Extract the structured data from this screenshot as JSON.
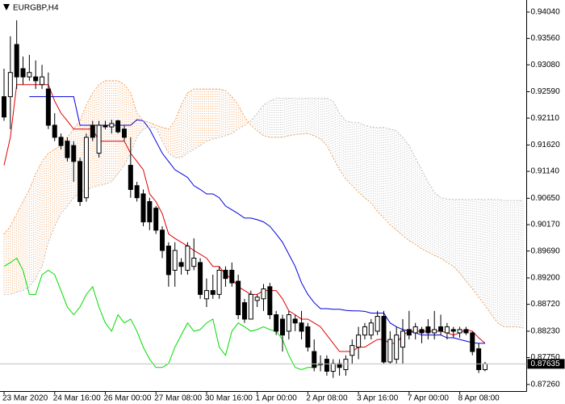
{
  "chart_data": {
    "type": "candlestick",
    "title": "EURGBP,H4",
    "categories": [
      "23 Mar 2020",
      null,
      null,
      null,
      null,
      null,
      null,
      null,
      "24 Mar 16:00",
      null,
      null,
      null,
      null,
      null,
      null,
      null,
      "26 Mar 00:00",
      null,
      null,
      null,
      null,
      null,
      null,
      null,
      "27 Mar 08:00",
      null,
      null,
      null,
      null,
      null,
      null,
      null,
      "30 Mar 16:00",
      null,
      null,
      null,
      null,
      null,
      null,
      null,
      "1 Apr 00:00",
      null,
      null,
      null,
      null,
      null,
      null,
      null,
      "2 Apr 08:00",
      null,
      null,
      null,
      null,
      null,
      null,
      null,
      "3 Apr 16:00",
      null,
      null,
      null,
      null,
      null,
      null,
      null,
      "7 Apr 00:00",
      null,
      null,
      null,
      null,
      null,
      null,
      null,
      "8 Apr 08:00",
      null,
      null,
      null,
      null,
      null,
      null,
      null,
      null,
      null,
      null
    ],
    "open": [
      0.925,
      0.925,
      0.9345,
      0.9301,
      0.9286,
      0.9286,
      0.9272,
      0.9264,
      0.9198,
      0.9176,
      0.9169,
      0.9161,
      0.9132,
      0.9066,
      0.9198,
      0.9147,
      0.9198,
      0.9195,
      0.9206,
      0.9191,
      0.9125,
      0.9088,
      0.9073,
      0.9059,
      0.9047,
      0.9007,
      0.8978,
      0.8934,
      0.8948,
      0.8934,
      0.8941,
      0.8948,
      0.8882,
      0.8897,
      0.889,
      0.8934,
      0.8934,
      0.8914,
      0.8875,
      0.8845,
      0.8879,
      0.8882,
      0.8904,
      0.8853,
      0.8845,
      0.8823,
      0.8845,
      0.8838,
      0.8831,
      0.8786,
      0.8764,
      0.8772,
      0.875,
      0.8764,
      0.8753,
      0.8779,
      0.8794,
      0.8816,
      0.8816,
      0.8823,
      0.885,
      0.8767,
      0.8772,
      0.8794,
      0.8826,
      0.882,
      0.8826,
      0.8831,
      0.882,
      0.8831,
      0.882,
      0.8826,
      0.882,
      0.8826,
      0.882,
      0.8791,
      0.8753,
      null,
      null,
      null,
      null,
      null,
      null
    ],
    "high": [
      0.9301,
      0.936,
      0.9389,
      0.9323,
      0.9326,
      0.9316,
      0.9308,
      0.9294,
      0.922,
      0.9183,
      0.9176,
      0.9169,
      0.9139,
      0.9183,
      0.9206,
      0.9206,
      0.9206,
      0.9208,
      0.9208,
      0.9198,
      0.9176,
      0.9095,
      0.9081,
      0.9066,
      0.9051,
      0.9014,
      0.8985,
      0.8985,
      0.8956,
      0.8985,
      0.8992,
      0.8956,
      0.8919,
      0.8926,
      0.8941,
      0.8941,
      0.8948,
      0.8926,
      0.8882,
      0.8897,
      0.889,
      0.8909,
      0.8911,
      0.886,
      0.8853,
      0.886,
      0.8853,
      0.886,
      0.8838,
      0.8808,
      0.8779,
      0.8779,
      0.8772,
      0.8772,
      0.8779,
      0.8808,
      0.8831,
      0.8838,
      0.8845,
      0.886,
      0.886,
      0.8823,
      0.8831,
      0.8845,
      0.886,
      0.8838,
      0.8831,
      0.8845,
      0.886,
      0.8853,
      0.8838,
      0.8831,
      0.8831,
      0.8831,
      0.8823,
      0.8801,
      0.8767,
      null,
      null,
      null,
      null,
      null,
      null
    ],
    "low": [
      0.9206,
      0.9191,
      0.9264,
      0.9272,
      0.9279,
      0.9264,
      0.9264,
      0.9191,
      0.9169,
      0.9154,
      0.9132,
      0.9095,
      0.9051,
      0.9059,
      0.9169,
      0.9139,
      0.9191,
      0.9183,
      0.9183,
      0.9169,
      0.9066,
      0.9059,
      0.9014,
      0.9007,
      0.9,
      0.8956,
      0.8904,
      0.8904,
      0.8926,
      0.8926,
      0.8934,
      0.8882,
      0.8867,
      0.8882,
      0.8882,
      0.8904,
      0.8904,
      0.8845,
      0.8838,
      0.8845,
      0.8867,
      0.886,
      0.8845,
      0.8816,
      0.8786,
      0.8808,
      0.8823,
      0.8808,
      0.8786,
      0.875,
      0.875,
      0.8742,
      0.8738,
      0.8742,
      0.8742,
      0.8764,
      0.8772,
      0.8808,
      0.8808,
      0.8816,
      0.8764,
      0.8764,
      0.8764,
      0.8764,
      0.8808,
      0.8808,
      0.8801,
      0.8808,
      0.8808,
      0.8816,
      0.8808,
      0.8811,
      0.8811,
      0.8816,
      0.8779,
      0.8747,
      0.875,
      null,
      null,
      null,
      null,
      null,
      null
    ],
    "close": [
      0.9213,
      0.9294,
      0.9286,
      0.9286,
      0.9294,
      0.9279,
      0.9286,
      0.9198,
      0.9176,
      0.9161,
      0.9139,
      0.9132,
      0.9059,
      0.9176,
      0.9176,
      0.9198,
      0.9195,
      0.9201,
      0.9186,
      0.9176,
      0.9081,
      0.9066,
      0.9022,
      0.9022,
      0.9007,
      0.897,
      0.8926,
      0.897,
      0.8941,
      0.8978,
      0.8956,
      0.889,
      0.8897,
      0.889,
      0.8934,
      0.8919,
      0.8911,
      0.8853,
      0.8845,
      0.889,
      0.8885,
      0.89,
      0.8853,
      0.8823,
      0.8816,
      0.8853,
      0.8838,
      0.8823,
      0.8794,
      0.8757,
      0.8762,
      0.875,
      0.8764,
      0.8757,
      0.8772,
      0.8797,
      0.8816,
      0.8831,
      0.8838,
      0.885,
      0.8767,
      0.8808,
      0.8816,
      0.8823,
      0.8816,
      0.8831,
      0.882,
      0.882,
      0.8826,
      0.8823,
      0.8831,
      0.8823,
      0.8826,
      0.882,
      0.8786,
      0.8753,
      0.87635,
      null,
      null,
      null,
      null,
      null,
      null
    ],
    "up_color": "#ffffff",
    "down_color": "#000000",
    "wick_color": "#000000",
    "series": [
      {
        "color": "#e00000",
        "style": "solid",
        "values": [
          0.9125,
          0.9176,
          0.9272,
          0.9272,
          0.9272,
          0.9272,
          0.9272,
          0.9272,
          0.9242,
          0.922,
          0.9206,
          0.9191,
          0.9191,
          0.9191,
          0.9191,
          0.9169,
          0.9169,
          0.9169,
          0.9169,
          0.9169,
          0.9147,
          0.9132,
          0.9117,
          0.9073,
          0.9059,
          0.9037,
          0.9,
          0.8992,
          0.8985,
          0.8978,
          0.897,
          0.8963,
          0.8956,
          0.8941,
          0.8941,
          0.8926,
          0.8919,
          0.8904,
          0.8897,
          0.889,
          0.889,
          0.8897,
          0.8897,
          0.8897,
          0.8882,
          0.886,
          0.8853,
          0.8845,
          0.8845,
          0.8838,
          0.8831,
          0.8816,
          0.8801,
          0.8786,
          0.8786,
          0.8786,
          0.8794,
          0.8794,
          0.8801,
          0.8808,
          0.8808,
          0.8801,
          0.8801,
          0.8816,
          0.8823,
          0.8823,
          0.8823,
          0.8823,
          0.8823,
          0.8823,
          0.882,
          0.8816,
          0.882,
          0.8826,
          0.8823,
          0.8811,
          0.8801,
          null,
          null,
          null,
          null,
          null,
          null
        ]
      },
      {
        "color": "#0000dd",
        "style": "solid",
        "values": [
          null,
          null,
          null,
          null,
          0.925,
          0.925,
          0.925,
          0.925,
          0.925,
          0.925,
          0.925,
          0.925,
          0.9198,
          0.9198,
          0.9198,
          0.9198,
          0.9198,
          0.9198,
          0.9198,
          0.9198,
          0.9198,
          0.9208,
          0.9206,
          0.9191,
          0.9169,
          0.9147,
          0.9132,
          0.9117,
          0.911,
          0.9103,
          0.9088,
          0.9081,
          0.9073,
          0.9073,
          0.9066,
          0.9051,
          0.9044,
          0.9037,
          0.9029,
          0.9029,
          0.9026,
          0.9022,
          0.9014,
          0.9,
          0.8985,
          0.8963,
          0.8941,
          0.8911,
          0.889,
          0.8875,
          0.8864,
          0.8864,
          0.8863,
          0.8863,
          0.8861,
          0.886,
          0.886,
          0.8859,
          0.8856,
          0.8856,
          0.8856,
          0.8838,
          0.8831,
          0.8826,
          0.8823,
          0.882,
          0.8816,
          0.8816,
          0.8816,
          0.8816,
          0.8811,
          0.8811,
          0.8808,
          0.8805,
          0.8802,
          0.8801,
          0.8801,
          null,
          null,
          null,
          null,
          null,
          null
        ]
      },
      {
        "color": "#00dd00",
        "style": "solid",
        "values": [
          0.8941,
          0.8948,
          0.8956,
          0.8934,
          0.889,
          0.889,
          0.8926,
          0.8934,
          0.8926,
          0.8897,
          0.8867,
          0.8853,
          0.8867,
          0.889,
          0.8904,
          0.8867,
          0.8838,
          0.8823,
          0.8853,
          0.8838,
          0.8845,
          0.8823,
          0.8794,
          0.8772,
          0.8757,
          0.8757,
          0.8764,
          0.8794,
          0.8816,
          0.8838,
          0.8823,
          0.8826,
          0.8838,
          0.8845,
          0.8794,
          0.8779,
          0.8823,
          0.8838,
          0.8831,
          0.8823,
          0.8826,
          0.8831,
          0.8826,
          0.8823,
          0.8808,
          0.8779,
          0.8757,
          0.8753,
          0.8757,
          0.8757,
          0.87635,
          null,
          null,
          null,
          null,
          null,
          null,
          null,
          null,
          null,
          null,
          null,
          null,
          null,
          null,
          null,
          null,
          null,
          null,
          null,
          null,
          null,
          null,
          null,
          null,
          null,
          null,
          null,
          null,
          null,
          null,
          null,
          null
        ]
      },
      {
        "color": "#f4a460",
        "style": "dot",
        "values": [
          0.9,
          0.9014,
          0.9037,
          0.9059,
          0.9081,
          0.911,
          0.9132,
          0.9147,
          0.9154,
          0.9161,
          0.9176,
          0.9191,
          0.9206,
          0.9235,
          0.9257,
          0.9272,
          0.9279,
          0.9279,
          0.9279,
          0.9272,
          0.9257,
          0.922,
          0.9206,
          0.9203,
          0.9198,
          0.9194,
          0.9191,
          0.9206,
          0.9235,
          0.9257,
          0.9264,
          0.9264,
          0.9264,
          0.9264,
          0.9264,
          0.9261,
          0.925,
          0.9235,
          0.9213,
          0.9198,
          0.9188,
          0.9179,
          0.9176,
          0.9176,
          0.9176,
          0.9179,
          0.9181,
          0.9182,
          0.9183,
          0.9179,
          0.9173,
          0.9161,
          0.9139,
          0.9117,
          0.91,
          0.9088,
          0.9076,
          0.9066,
          0.9056,
          0.9041,
          0.9029,
          0.9017,
          0.9007,
          0.8997,
          0.8988,
          0.8981,
          0.8973,
          0.8967,
          0.8961,
          0.8956,
          0.8948,
          0.8941,
          0.8929,
          0.8914,
          0.89,
          0.8885,
          0.887,
          0.8853,
          0.8838,
          0.8831,
          0.8831,
          0.8831,
          0.8829
        ]
      },
      {
        "color": "#c0c0c0",
        "style": "dot",
        "values": [
          0.889,
          0.889,
          0.8894,
          0.8897,
          0.8904,
          0.8919,
          0.8941,
          0.8985,
          0.9014,
          0.9037,
          0.9051,
          0.9066,
          0.9076,
          0.9081,
          0.9085,
          0.9088,
          0.9091,
          0.9095,
          0.911,
          0.9125,
          0.9147,
          0.9176,
          0.9191,
          0.9194,
          0.9194,
          0.9169,
          0.9147,
          0.9139,
          0.9139,
          0.9147,
          0.9154,
          0.9161,
          0.9169,
          0.9173,
          0.9176,
          0.9179,
          0.9183,
          0.9191,
          0.9198,
          0.9206,
          0.922,
          0.9235,
          0.9242,
          0.9247,
          0.9247,
          0.9247,
          0.9247,
          0.9247,
          0.9247,
          0.9247,
          0.9247,
          0.9247,
          0.9242,
          0.922,
          0.9206,
          0.9203,
          0.9203,
          0.9198,
          0.9195,
          0.9194,
          0.9194,
          0.9191,
          0.9188,
          0.9176,
          0.9161,
          0.9139,
          0.9117,
          0.9095,
          0.9076,
          0.9066,
          0.9064,
          0.9063,
          0.9063,
          0.9063,
          0.9063,
          0.9063,
          0.9063,
          0.9063,
          0.9063,
          0.9061,
          0.9061,
          0.9061,
          0.9061
        ]
      }
    ],
    "cloud": {
      "up_color": "#f4a460",
      "down_color": "#c0c0c0"
    },
    "ylim": [
      0.8714,
      0.9426
    ],
    "yticks": [
      {
        "value": 0.9404,
        "label": "0.94040"
      },
      {
        "value": 0.9356,
        "label": "0.93560"
      },
      {
        "value": 0.9308,
        "label": "0.93080"
      },
      {
        "value": 0.9259,
        "label": "0.92590"
      },
      {
        "value": 0.9211,
        "label": "0.92110"
      },
      {
        "value": 0.9162,
        "label": "0.91620"
      },
      {
        "value": 0.9114,
        "label": "0.91140"
      },
      {
        "value": 0.9065,
        "label": "0.90650"
      },
      {
        "value": 0.9017,
        "label": "0.90170"
      },
      {
        "value": 0.8969,
        "label": "0.89690"
      },
      {
        "value": 0.892,
        "label": "0.89200"
      },
      {
        "value": 0.8872,
        "label": "0.88720"
      },
      {
        "value": 0.8823,
        "label": "0.88230"
      },
      {
        "value": 0.8775,
        "label": "0.87750"
      },
      {
        "value": 0.8726,
        "label": "0.87260"
      }
    ],
    "last_price": {
      "value": 0.87635,
      "label": "0.87635"
    },
    "grid": false
  }
}
